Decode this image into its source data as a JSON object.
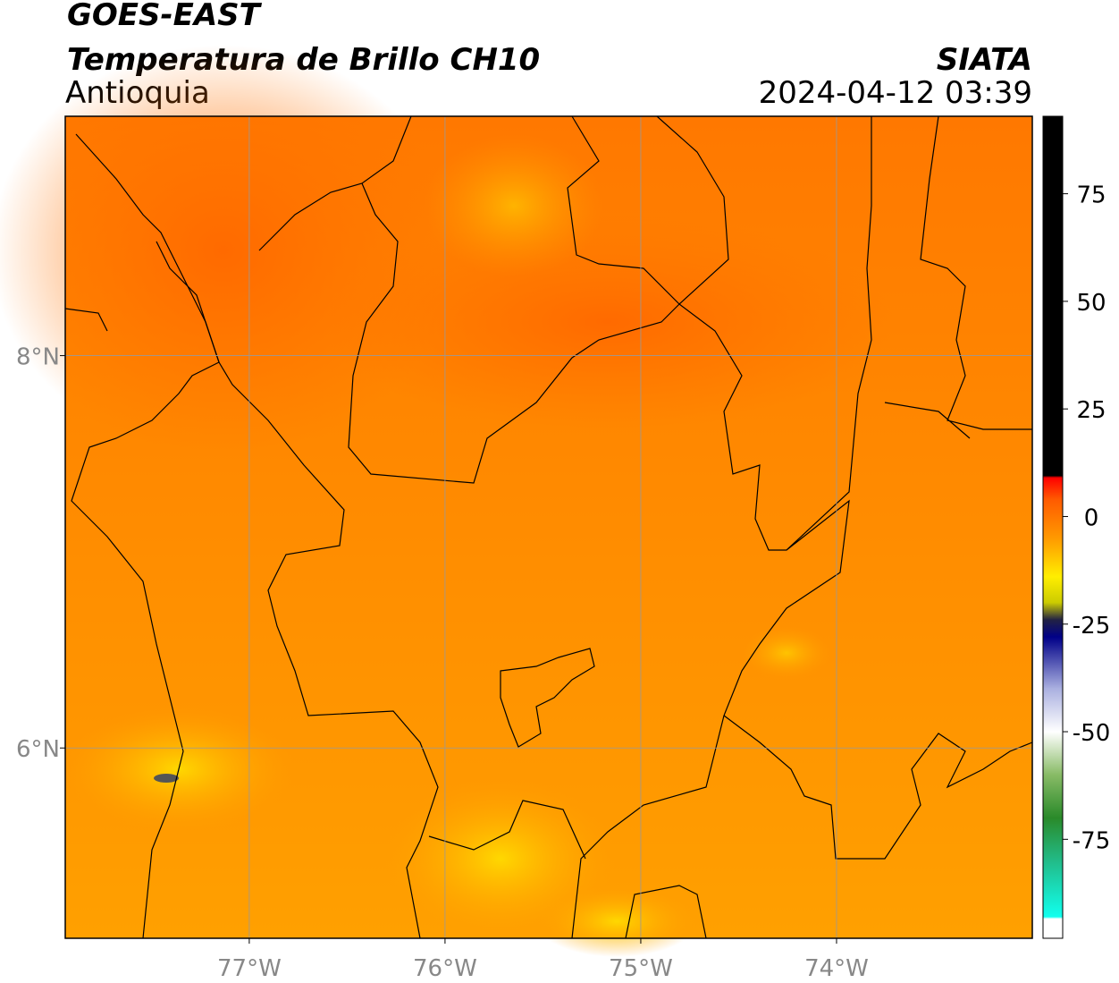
{
  "header": {
    "title": "GOES-EAST",
    "subtitle": "Temperatura de Brillo CH10",
    "region": "Antioquia",
    "source": "SIATA",
    "datetime": "2024-04-12 03:39"
  },
  "map": {
    "xlim": [
      -77.94,
      -73.0
    ],
    "ylim": [
      5.03,
      9.22
    ],
    "xticks": [
      {
        "value": -77,
        "label": "77°W"
      },
      {
        "value": -76,
        "label": "76°W"
      },
      {
        "value": -75,
        "label": "75°W"
      },
      {
        "value": -74,
        "label": "74°W"
      }
    ],
    "yticks": [
      {
        "value": 6,
        "label": "6°N"
      },
      {
        "value": 8,
        "label": "8°N"
      }
    ],
    "grid": true
  },
  "colorbar": {
    "lim": [
      -98,
      93
    ],
    "ticks": [
      75,
      50,
      25,
      0,
      -25,
      -50,
      -75
    ],
    "colormap": [
      {
        "value": 93,
        "color": "#000000"
      },
      {
        "value": 9.5,
        "color": "#000000"
      },
      {
        "value": 9,
        "color": "#ff0000"
      },
      {
        "value": 4,
        "color": "#ff5a00"
      },
      {
        "value": -5,
        "color": "#ff9900"
      },
      {
        "value": -14,
        "color": "#ffee00"
      },
      {
        "value": -20,
        "color": "#cccc00"
      },
      {
        "value": -24,
        "color": "#222244"
      },
      {
        "value": -28,
        "color": "#000088"
      },
      {
        "value": -40,
        "color": "#aab0e0"
      },
      {
        "value": -50,
        "color": "#ffffff"
      },
      {
        "value": -60,
        "color": "#88bb66"
      },
      {
        "value": -70,
        "color": "#2a8a2a"
      },
      {
        "value": -80,
        "color": "#22bb88"
      },
      {
        "value": -93,
        "color": "#11ffee"
      },
      {
        "value": -93.5,
        "color": "#ffffff"
      },
      {
        "value": -98,
        "color": "#ffffff"
      }
    ]
  }
}
